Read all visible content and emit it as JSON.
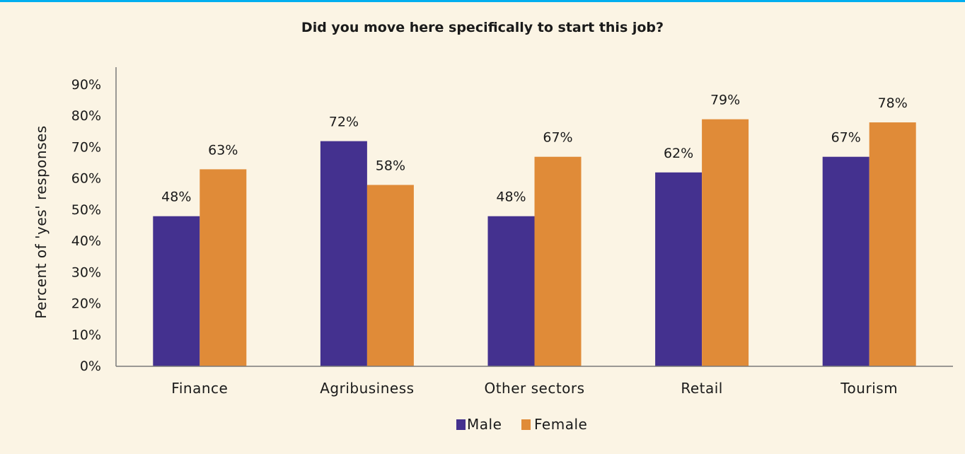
{
  "colors": {
    "background": "#fbf4e4",
    "top_border": "#00aeef",
    "axis": "#7a7a7a",
    "male": "#44318f",
    "female": "#e08b38"
  },
  "chart_data": {
    "type": "bar",
    "title": "Did you move here specifically to start this job?",
    "xlabel": "",
    "ylabel": "Percent of 'yes' responses",
    "categories": [
      "Finance",
      "Agribusiness",
      "Other sectors",
      "Retail",
      "Tourism"
    ],
    "series": [
      {
        "name": "Male",
        "color": "#44318f",
        "values": [
          48,
          72,
          48,
          62,
          67
        ],
        "labels": [
          "48%",
          "72%",
          "48%",
          "62%",
          "67%"
        ]
      },
      {
        "name": "Female",
        "color": "#e08b38",
        "values": [
          63,
          58,
          67,
          79,
          78
        ],
        "labels": [
          "63%",
          "58%",
          "67%",
          "79%",
          "78%"
        ]
      }
    ],
    "ylim": [
      0,
      90
    ],
    "yticks": [
      0,
      10,
      20,
      30,
      40,
      50,
      60,
      70,
      80,
      90
    ],
    "ytick_labels": [
      "0%",
      "10%",
      "20%",
      "30%",
      "40%",
      "50%",
      "60%",
      "70%",
      "80%",
      "90%"
    ],
    "grid": false,
    "legend_position": "bottom-center"
  }
}
